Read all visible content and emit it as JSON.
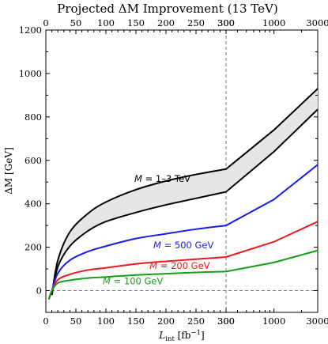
{
  "chart_data": {
    "type": "line",
    "title": "Projected ΔM Improvement (13 TeV)",
    "xlabel": "L",
    "xlabel_sub": "int",
    "xlabel_unit": " [fb",
    "xlabel_sup": "−1",
    "xlabel_close": "]",
    "ylabel": "ΔM [GeV]",
    "x_scale": "linear from 0 to 300, logarithmic from 300 to 3000",
    "xlim": [
      0,
      3000
    ],
    "ylim": [
      -100,
      1200
    ],
    "x_ticks_linear": [
      0,
      50,
      100,
      150,
      200,
      250,
      300
    ],
    "x_ticks_log": [
      300,
      1000,
      3000
    ],
    "y_ticks": [
      0,
      200,
      400,
      600,
      800,
      1000,
      1200
    ],
    "x_tick_labels": [
      "0",
      "50",
      "100",
      "150",
      "200",
      "250",
      "300",
      "300",
      "1000",
      "3000"
    ],
    "y_tick_labels": [
      "0",
      "200",
      "400",
      "600",
      "800",
      "1000",
      "1200"
    ],
    "grid": false,
    "reference_lines": {
      "horizontal_y": 0,
      "vertical_x": 300,
      "style": "dashed"
    },
    "band": {
      "label": "M = 1–3 TeV",
      "color": "#000000",
      "fill": "#e6e6e6",
      "upper": {
        "x": [
          10,
          20,
          40,
          70,
          100,
          150,
          200,
          250,
          300,
          1000,
          3000
        ],
        "y": [
          -20,
          140,
          270,
          355,
          408,
          465,
          505,
          535,
          560,
          740,
          930
        ]
      },
      "lower": {
        "x": [
          10,
          20,
          40,
          70,
          100,
          150,
          200,
          250,
          300,
          1000,
          3000
        ],
        "y": [
          -20,
          110,
          205,
          275,
          318,
          360,
          395,
          425,
          455,
          640,
          835
        ]
      }
    },
    "series": [
      {
        "name": "M = 500 GeV",
        "color": "#1a1aee",
        "x": [
          5,
          10,
          20,
          40,
          70,
          100,
          150,
          200,
          250,
          300,
          1000,
          3000
        ],
        "y": [
          -40,
          0,
          80,
          140,
          180,
          205,
          240,
          262,
          283,
          300,
          420,
          580
        ]
      },
      {
        "name": "M = 200 GeV",
        "color": "#ee1a1a",
        "x": [
          5,
          10,
          20,
          40,
          70,
          100,
          150,
          200,
          250,
          300,
          1000,
          3000
        ],
        "y": [
          -40,
          0,
          50,
          75,
          95,
          105,
          123,
          135,
          145,
          155,
          225,
          318
        ]
      },
      {
        "name": "M = 100 GeV",
        "color": "#14a014",
        "x": [
          5,
          10,
          20,
          40,
          70,
          100,
          150,
          200,
          250,
          300,
          1000,
          3000
        ],
        "y": [
          -40,
          0,
          35,
          48,
          58,
          63,
          72,
          78,
          84,
          88,
          130,
          185
        ]
      }
    ],
    "annotations": [
      {
        "series": "band",
        "text_italic": "M",
        "text_rest": " = 1–3 TeV",
        "color": "#000000"
      },
      {
        "series": "M = 500 GeV",
        "text_italic": "M",
        "text_rest": " = 500 GeV",
        "color": "#1a1aee"
      },
      {
        "series": "M = 200 GeV",
        "text_italic": "M",
        "text_rest": " = 200 GeV",
        "color": "#ee1a1a"
      },
      {
        "series": "M = 100 GeV",
        "text_italic": "M",
        "text_rest": " = 100 GeV",
        "color": "#14a014"
      }
    ]
  }
}
